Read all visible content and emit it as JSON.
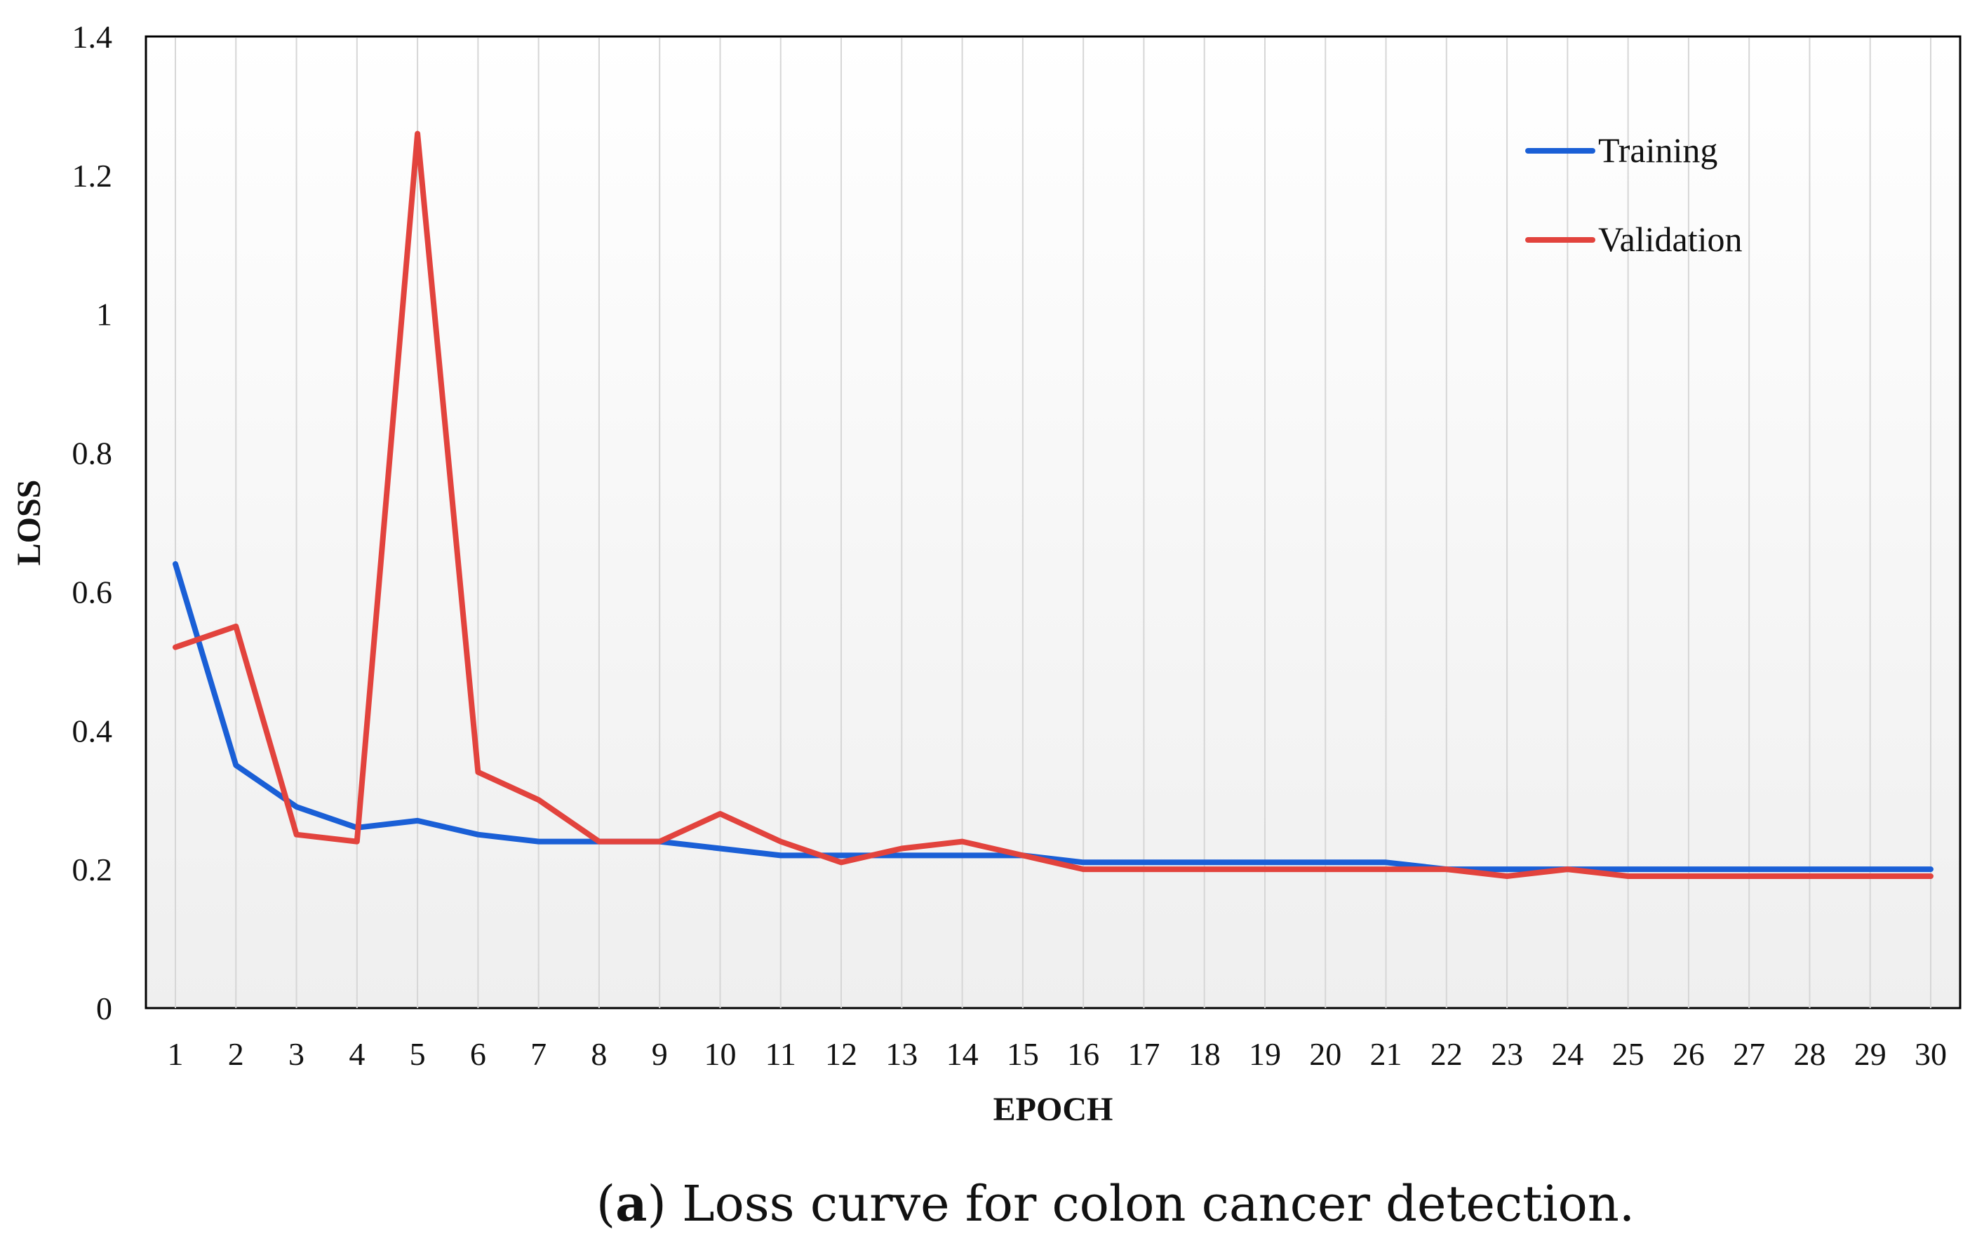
{
  "chart_data": {
    "type": "line",
    "title": "",
    "xlabel": "EPOCH",
    "ylabel": "LOSS",
    "ylim": [
      0,
      1.4
    ],
    "yticks": [
      "0",
      "0.2",
      "0.4",
      "0.6",
      "0.8",
      "1",
      "1.2",
      "1.4"
    ],
    "x": [
      "1",
      "2",
      "3",
      "4",
      "5",
      "6",
      "7",
      "8",
      "9",
      "10",
      "11",
      "12",
      "13",
      "14",
      "15",
      "16",
      "17",
      "18",
      "19",
      "20",
      "21",
      "22",
      "23",
      "24",
      "25",
      "26",
      "27",
      "28",
      "29",
      "30"
    ],
    "grid": "vertical",
    "legend_position": "top-right",
    "series": [
      {
        "name": "Training",
        "color": "#1a5fd6",
        "values": [
          0.64,
          0.35,
          0.29,
          0.26,
          0.27,
          0.25,
          0.24,
          0.24,
          0.24,
          0.23,
          0.22,
          0.22,
          0.22,
          0.22,
          0.22,
          0.21,
          0.21,
          0.21,
          0.21,
          0.21,
          0.21,
          0.2,
          0.2,
          0.2,
          0.2,
          0.2,
          0.2,
          0.2,
          0.2,
          0.2
        ]
      },
      {
        "name": "Validation",
        "color": "#e2433d",
        "values": [
          0.52,
          0.55,
          0.25,
          0.24,
          1.26,
          0.34,
          0.3,
          0.24,
          0.24,
          0.28,
          0.24,
          0.21,
          0.23,
          0.24,
          0.22,
          0.2,
          0.2,
          0.2,
          0.2,
          0.2,
          0.2,
          0.2,
          0.19,
          0.2,
          0.19,
          0.19,
          0.19,
          0.19,
          0.19,
          0.19
        ]
      }
    ]
  },
  "caption": {
    "label_open": "(",
    "label_bold": "a",
    "label_close": ")",
    "text": " Loss curve for colon cancer detection."
  }
}
